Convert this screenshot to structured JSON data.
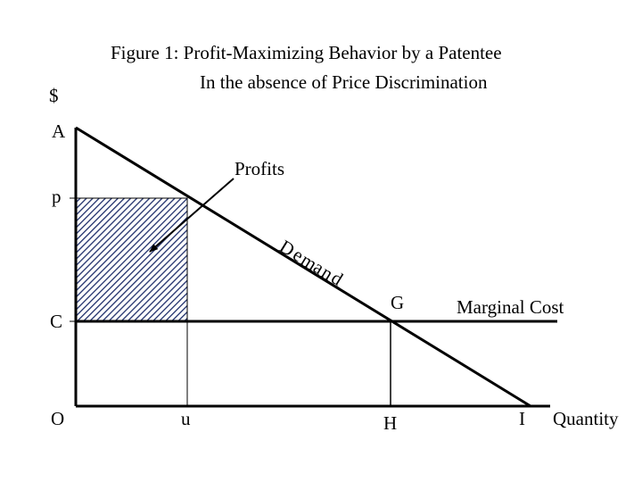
{
  "title": {
    "line1": "Figure 1:  Profit-Maximizing Behavior by a Patentee",
    "line2": "In the absence of Price Discrimination"
  },
  "axes": {
    "y_label": "$",
    "x_label": "Quantity",
    "origin_label": "O"
  },
  "points": {
    "a": "A",
    "p": "p",
    "c": "C",
    "u": "u",
    "h": "H",
    "i": "I",
    "g": "G"
  },
  "labels": {
    "profits": "Profits",
    "demand_letters": [
      "D",
      "e",
      "m",
      "a",
      "n",
      "d"
    ],
    "marginal_cost": "Marginal Cost"
  },
  "colors": {
    "ink": "#000000",
    "hatch": "#1f2f6b",
    "background": "#ffffff"
  }
}
